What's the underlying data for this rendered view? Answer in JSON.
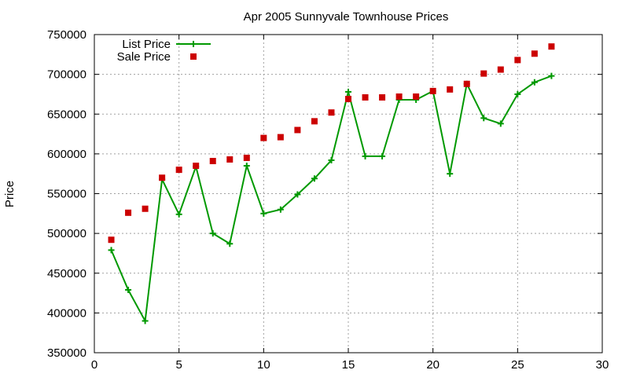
{
  "chart_data": {
    "type": "scatter",
    "title": "Apr 2005 Sunnyvale Townhouse Prices",
    "xlabel": "",
    "ylabel": "Price",
    "xlim": [
      0,
      30
    ],
    "ylim": [
      350000,
      750000
    ],
    "grid": true,
    "legend_position": "top-left",
    "x_ticks": [
      0,
      5,
      10,
      15,
      20,
      25,
      30
    ],
    "y_ticks": [
      350000,
      400000,
      450000,
      500000,
      550000,
      600000,
      650000,
      700000,
      750000
    ],
    "x_tick_labels": [
      "0",
      "5",
      "10",
      "15",
      "20",
      "25",
      "30"
    ],
    "y_tick_labels": [
      "350000",
      "400000",
      "450000",
      "500000",
      "550000",
      "600000",
      "650000",
      "700000",
      "750000"
    ],
    "series": [
      {
        "name": "List Price",
        "style": "linespoints",
        "marker": "plus",
        "color": "#009900",
        "x": [
          1,
          2,
          3,
          4,
          5,
          6,
          7,
          8,
          9,
          10,
          11,
          12,
          13,
          14,
          15,
          16,
          17,
          18,
          19,
          20,
          21,
          22,
          23,
          24,
          25,
          26,
          27
        ],
        "values": [
          479000,
          429000,
          390000,
          568000,
          524000,
          584000,
          500000,
          487000,
          585000,
          525000,
          530000,
          549000,
          569000,
          592000,
          678000,
          597000,
          597000,
          668000,
          668000,
          679000,
          575000,
          688000,
          645000,
          638000,
          675000,
          690000,
          698000
        ]
      },
      {
        "name": "Sale Price",
        "style": "points",
        "marker": "square",
        "color": "#cc0000",
        "x": [
          1,
          2,
          3,
          4,
          5,
          6,
          7,
          8,
          9,
          10,
          11,
          12,
          13,
          14,
          15,
          16,
          17,
          18,
          19,
          20,
          21,
          22,
          23,
          24,
          25,
          26,
          27
        ],
        "values": [
          492000,
          526000,
          531000,
          570000,
          580000,
          585000,
          591000,
          593000,
          595000,
          620000,
          621000,
          630000,
          641000,
          652000,
          669000,
          671000,
          671000,
          672000,
          672000,
          679000,
          681000,
          688000,
          701000,
          706000,
          718000,
          726000,
          735000
        ]
      }
    ]
  }
}
